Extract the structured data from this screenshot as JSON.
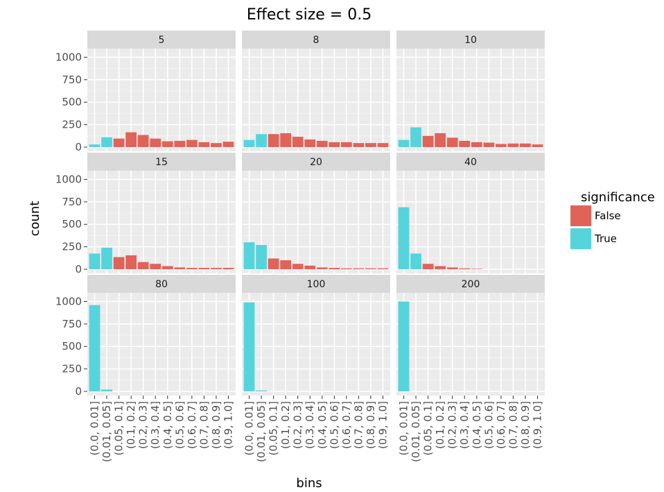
{
  "chart_data": {
    "type": "bar",
    "title": "Effect size = 0.5",
    "xlabel": "bins",
    "ylabel": "count",
    "ylim": [
      0,
      1050
    ],
    "yticks": [
      0,
      250,
      500,
      750,
      1000
    ],
    "grid": true,
    "facet_layout": "3x3",
    "categories": [
      "(0.0, 0.01]",
      "(0.01, 0.05]",
      "(0.05, 0.1]",
      "(0.1, 0.2]",
      "(0.2, 0.3]",
      "(0.3, 0.4]",
      "(0.4, 0.5]",
      "(0.5, 0.6]",
      "(0.6, 0.7]",
      "(0.7, 0.8]",
      "(0.8, 0.9]",
      "(0.9, 1.0]"
    ],
    "legend": {
      "title": "significance",
      "position": "right",
      "entries": [
        {
          "label": "False",
          "color": "#e0635a"
        },
        {
          "label": "True",
          "color": "#56d4dc"
        }
      ]
    },
    "significance": [
      "True",
      "True",
      "False",
      "False",
      "False",
      "False",
      "False",
      "False",
      "False",
      "False",
      "False",
      "False"
    ],
    "facets": [
      {
        "label": "5",
        "values": [
          30,
          110,
          95,
          165,
          135,
          95,
          65,
          70,
          80,
          55,
          45,
          60
        ]
      },
      {
        "label": "8",
        "values": [
          80,
          145,
          145,
          155,
          115,
          85,
          70,
          55,
          55,
          45,
          45,
          45
        ]
      },
      {
        "label": "10",
        "values": [
          80,
          220,
          125,
          155,
          105,
          70,
          55,
          50,
          35,
          40,
          40,
          30
        ]
      },
      {
        "label": "15",
        "values": [
          175,
          240,
          135,
          155,
          80,
          60,
          35,
          20,
          15,
          15,
          15,
          15
        ]
      },
      {
        "label": "20",
        "values": [
          300,
          270,
          120,
          100,
          60,
          40,
          20,
          15,
          10,
          10,
          10,
          10
        ]
      },
      {
        "label": "40",
        "values": [
          690,
          175,
          60,
          35,
          20,
          10,
          5,
          0,
          0,
          0,
          0,
          0
        ]
      },
      {
        "label": "80",
        "values": [
          960,
          20,
          0,
          0,
          0,
          0,
          0,
          0,
          0,
          0,
          0,
          0
        ]
      },
      {
        "label": "100",
        "values": [
          990,
          10,
          0,
          0,
          0,
          0,
          0,
          0,
          0,
          0,
          0,
          0
        ]
      },
      {
        "label": "200",
        "values": [
          1000,
          0,
          0,
          0,
          0,
          0,
          0,
          0,
          0,
          0,
          0,
          0
        ]
      }
    ]
  }
}
